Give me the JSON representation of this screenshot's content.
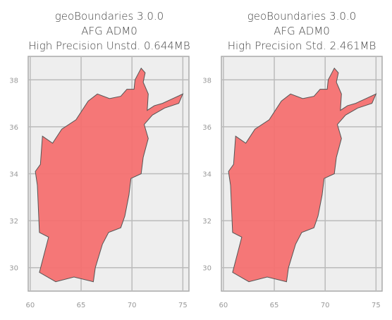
{
  "chart_data": [
    {
      "type": "map",
      "title": [
        "geoBoundaries 3.0.0",
        "AFG ADM0",
        "High Precision Unstd. 0.644MB"
      ],
      "color": "#f47070",
      "xlim": [
        59.8,
        75.6
      ],
      "ylim": [
        29,
        39
      ],
      "xticks": [
        60,
        65,
        70,
        75
      ],
      "yticks": [
        30,
        32,
        34,
        36,
        38
      ],
      "grid": true
    },
    {
      "type": "map",
      "title": [
        "geoBoundaries 3.0.0",
        "AFG ADM0",
        "High Precision Std. 2.461MB"
      ],
      "color": "#f47070",
      "xlim": [
        59.8,
        75.6
      ],
      "ylim": [
        29,
        39
      ],
      "xticks": [
        60,
        65,
        70,
        75
      ],
      "yticks": [
        30,
        32,
        34,
        36,
        38
      ],
      "grid": true
    }
  ]
}
